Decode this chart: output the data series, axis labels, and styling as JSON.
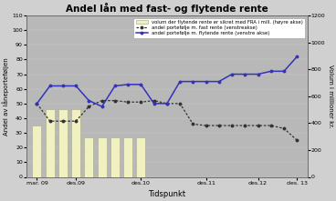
{
  "title": "Andel lån med fast- og flytende rente",
  "xlabel": "Tidspunkt",
  "ylabel_left": "Andel av låneporteføljen",
  "ylabel_right": "Volum i millioner kr.",
  "plot_bg_color": "#b8b8b8",
  "fig_bg_color": "#d0d0d0",
  "bar_x": [
    0,
    1,
    2,
    3,
    4,
    5,
    6,
    7,
    8,
    9
  ],
  "bar_heights": [
    35,
    46,
    46,
    46,
    27,
    27,
    27,
    27,
    27,
    0
  ],
  "bar_color": "#f0f0c0",
  "bar_edge_color": "#b0b090",
  "fixed_rate_x": [
    0,
    1,
    2,
    3,
    4,
    5,
    6,
    7,
    8,
    9,
    10,
    11,
    12,
    13,
    14,
    15,
    16,
    17,
    18,
    19,
    20
  ],
  "fixed_rate_y": [
    50,
    38,
    38,
    38,
    48,
    52,
    52,
    51,
    51,
    52,
    50,
    50,
    36,
    35,
    35,
    35,
    35,
    35,
    35,
    33,
    25
  ],
  "floating_rate_x": [
    0,
    1,
    2,
    3,
    4,
    5,
    6,
    7,
    8,
    9,
    10,
    11,
    12,
    13,
    14,
    15,
    16,
    17,
    18,
    19,
    20
  ],
  "floating_rate_y": [
    50,
    62,
    62,
    62,
    52,
    48,
    62,
    63,
    63,
    50,
    50,
    65,
    65,
    65,
    65,
    70,
    70,
    70,
    72,
    72,
    82
  ],
  "ylim_left": [
    0,
    110
  ],
  "ylim_right": [
    0,
    1200
  ],
  "yticks_left": [
    0,
    10,
    20,
    30,
    40,
    50,
    60,
    70,
    80,
    90,
    100,
    110
  ],
  "yticks_right": [
    0,
    200,
    400,
    600,
    800,
    1000,
    1200
  ],
  "fixed_rate_color": "#333333",
  "floating_rate_color": "#3333bb",
  "x_tick_positions": [
    0,
    3,
    8,
    13,
    17,
    20
  ],
  "x_tick_labels": [
    "mar. 09",
    "des.09",
    "des.10",
    "des.11",
    "des.12",
    "des. 13"
  ],
  "legend_labels": [
    "volum der flytende rente er sikret med FRA i mill. (høyre akse)",
    "andel portefølje m. fast rente (venstreakse)",
    "andel portefølje m. flytende rente (venstre akse)"
  ]
}
